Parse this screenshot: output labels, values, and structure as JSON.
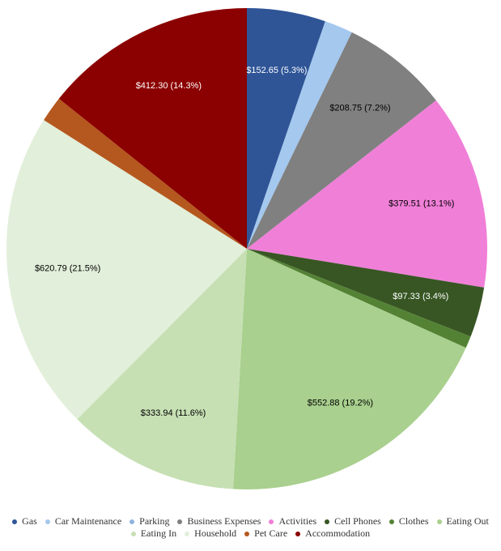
{
  "chart_data": {
    "type": "pie",
    "categories": [
      "Gas",
      "Car Maintenance",
      "Parking",
      "Business Expenses",
      "Activities",
      "Cell Phones",
      "Clothes",
      "Eating Out",
      "Eating In",
      "Household",
      "Pet Care",
      "Accommodation"
    ],
    "values": [
      152.65,
      55,
      0,
      208.75,
      379.51,
      97.33,
      23.35,
      552.88,
      333.94,
      620.79,
      50,
      412.3
    ],
    "value_labels": [
      "$152.65 (5.3%)",
      null,
      null,
      "$208.75 (7.2%)",
      "$379.51 (13.1%)",
      "$97.33 (3.4%)",
      null,
      "$552.88 (19.2%)",
      "$333.94 (11.6%)",
      "$620.79 (21.5%)",
      null,
      "$412.30 (14.3%)"
    ],
    "colors": [
      "#2f5597",
      "#a4c8ee",
      "#8fb4e0",
      "#808080",
      "#f07fd8",
      "#375623",
      "#548235",
      "#a9d08e",
      "#c6e0b4",
      "#e2efda",
      "#b5581f",
      "#8b0000"
    ],
    "label_colors": [
      "#ffffff",
      null,
      null,
      "#000000",
      "#000000",
      "#ffffff",
      null,
      "#000000",
      "#000000",
      "#000000",
      null,
      "#ffffff"
    ]
  }
}
